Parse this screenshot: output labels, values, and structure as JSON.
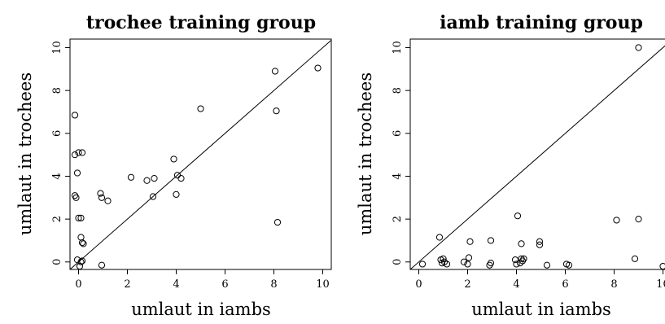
{
  "chart_data": [
    {
      "type": "scatter",
      "title": "trochee training group",
      "xlabel": "umlaut in iambs",
      "ylabel": "umlaut in trochees",
      "xlim": [
        -0.35,
        10.35
      ],
      "ylim": [
        -0.35,
        10.4
      ],
      "xticks": [
        0,
        2,
        4,
        6,
        8,
        10
      ],
      "yticks": [
        0,
        2,
        4,
        6,
        8,
        10
      ],
      "reference_line": "y = x",
      "grid": false,
      "points": [
        {
          "x": -0.15,
          "y": 6.85
        },
        {
          "x": -0.15,
          "y": 5.0
        },
        {
          "x": 0.0,
          "y": 5.1
        },
        {
          "x": 0.15,
          "y": 5.1
        },
        {
          "x": -0.05,
          "y": 4.15
        },
        {
          "x": -0.15,
          "y": 3.1
        },
        {
          "x": -0.1,
          "y": 3.0
        },
        {
          "x": 0.0,
          "y": 2.05
        },
        {
          "x": 0.1,
          "y": 2.05
        },
        {
          "x": 0.1,
          "y": 1.15
        },
        {
          "x": 0.15,
          "y": 0.9
        },
        {
          "x": 0.2,
          "y": 0.85
        },
        {
          "x": -0.05,
          "y": 0.1
        },
        {
          "x": 0.1,
          "y": 0.0
        },
        {
          "x": 0.15,
          "y": 0.05
        },
        {
          "x": 0.05,
          "y": -0.2
        },
        {
          "x": 0.9,
          "y": 3.2
        },
        {
          "x": 0.95,
          "y": 3.0
        },
        {
          "x": 1.2,
          "y": 2.85
        },
        {
          "x": 0.95,
          "y": -0.15
        },
        {
          "x": 2.15,
          "y": 3.95
        },
        {
          "x": 2.8,
          "y": 3.8
        },
        {
          "x": 3.1,
          "y": 3.9
        },
        {
          "x": 3.05,
          "y": 3.05
        },
        {
          "x": 3.9,
          "y": 4.8
        },
        {
          "x": 4.05,
          "y": 4.05
        },
        {
          "x": 4.2,
          "y": 3.9
        },
        {
          "x": 4.0,
          "y": 3.15
        },
        {
          "x": 5.0,
          "y": 7.15
        },
        {
          "x": 8.05,
          "y": 8.9
        },
        {
          "x": 8.1,
          "y": 7.05
        },
        {
          "x": 8.15,
          "y": 1.85
        },
        {
          "x": 9.8,
          "y": 9.05
        }
      ]
    },
    {
      "type": "scatter",
      "title": "iamb training group",
      "xlabel": "umlaut in iambs",
      "ylabel": "umlaut in trochees",
      "xlim": [
        -0.35,
        10.35
      ],
      "ylim": [
        -0.35,
        10.4
      ],
      "xticks": [
        0,
        2,
        4,
        6,
        8,
        10
      ],
      "yticks": [
        0,
        2,
        4,
        6,
        8,
        10
      ],
      "reference_line": "y = x",
      "grid": false,
      "points": [
        {
          "x": 0.15,
          "y": -0.1
        },
        {
          "x": 0.85,
          "y": 1.15
        },
        {
          "x": 0.9,
          "y": 0.1
        },
        {
          "x": 1.0,
          "y": 0.15
        },
        {
          "x": 0.95,
          "y": -0.05
        },
        {
          "x": 1.05,
          "y": 0.0
        },
        {
          "x": 1.15,
          "y": -0.1
        },
        {
          "x": 1.85,
          "y": 0.0
        },
        {
          "x": 2.05,
          "y": 0.2
        },
        {
          "x": 2.1,
          "y": 0.95
        },
        {
          "x": 2.0,
          "y": -0.1
        },
        {
          "x": 2.95,
          "y": 1.0
        },
        {
          "x": 2.95,
          "y": -0.05
        },
        {
          "x": 2.9,
          "y": -0.15
        },
        {
          "x": 3.95,
          "y": 0.1
        },
        {
          "x": 4.0,
          "y": -0.1
        },
        {
          "x": 4.05,
          "y": 2.15
        },
        {
          "x": 4.2,
          "y": 0.85
        },
        {
          "x": 4.2,
          "y": 0.15
        },
        {
          "x": 4.25,
          "y": 0.05
        },
        {
          "x": 4.3,
          "y": 0.15
        },
        {
          "x": 4.15,
          "y": -0.05
        },
        {
          "x": 4.95,
          "y": 0.95
        },
        {
          "x": 4.95,
          "y": 0.8
        },
        {
          "x": 5.25,
          "y": -0.15
        },
        {
          "x": 6.05,
          "y": -0.1
        },
        {
          "x": 6.15,
          "y": -0.15
        },
        {
          "x": 8.1,
          "y": 1.95
        },
        {
          "x": 9.0,
          "y": 2.0
        },
        {
          "x": 8.85,
          "y": 0.15
        },
        {
          "x": 9.0,
          "y": 10.0
        },
        {
          "x": 10.0,
          "y": -0.2
        }
      ]
    }
  ]
}
